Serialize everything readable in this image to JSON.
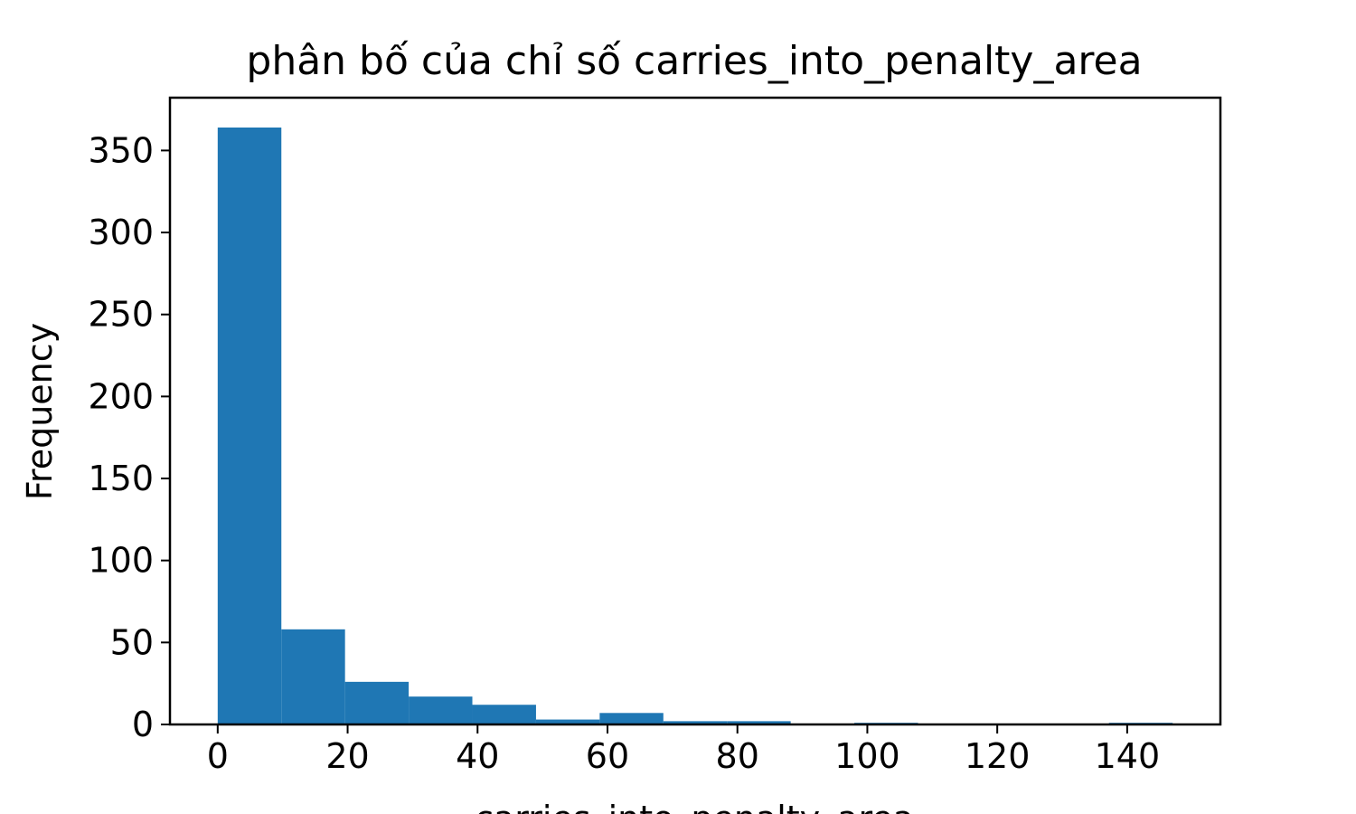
{
  "chart_data": {
    "type": "bar",
    "title": "phân bố của chỉ số carries_into_penalty_area",
    "xlabel": "carries_into_penalty_area",
    "ylabel": "Frequency",
    "bin_edges": [
      0,
      9.8,
      19.6,
      29.4,
      39.2,
      49.0,
      58.8,
      68.6,
      78.4,
      88.2,
      98.0,
      107.8,
      117.6,
      127.4,
      137.2,
      147.0
    ],
    "values": [
      364,
      58,
      26,
      17,
      12,
      3,
      7,
      2,
      2,
      0,
      1,
      0,
      0,
      0,
      1
    ],
    "xlim": [
      -7.35,
      154.35
    ],
    "ylim": [
      0,
      382.2
    ],
    "xticks": [
      0,
      20,
      40,
      60,
      80,
      100,
      120,
      140
    ],
    "yticks": [
      0,
      50,
      100,
      150,
      200,
      250,
      300,
      350
    ],
    "grid": false,
    "bar_color": "#1f77b4"
  }
}
